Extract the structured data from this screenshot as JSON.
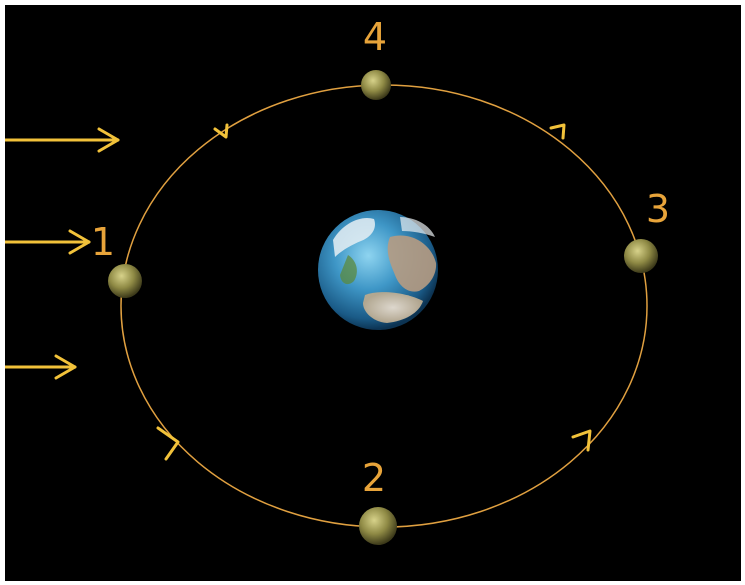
{
  "phase_labels": {
    "one": "1",
    "two": "2",
    "three": "3",
    "four": "4"
  },
  "colors": {
    "background": "#000000",
    "orbit": "#e0a040",
    "arrow": "#f2c23a",
    "label": "#e8a43a"
  },
  "icons": {
    "earth": "earth-icon",
    "moon": "moon-icon",
    "sunlight": "sunlight-arrow-icon",
    "direction": "orbit-direction-arrow-icon"
  }
}
